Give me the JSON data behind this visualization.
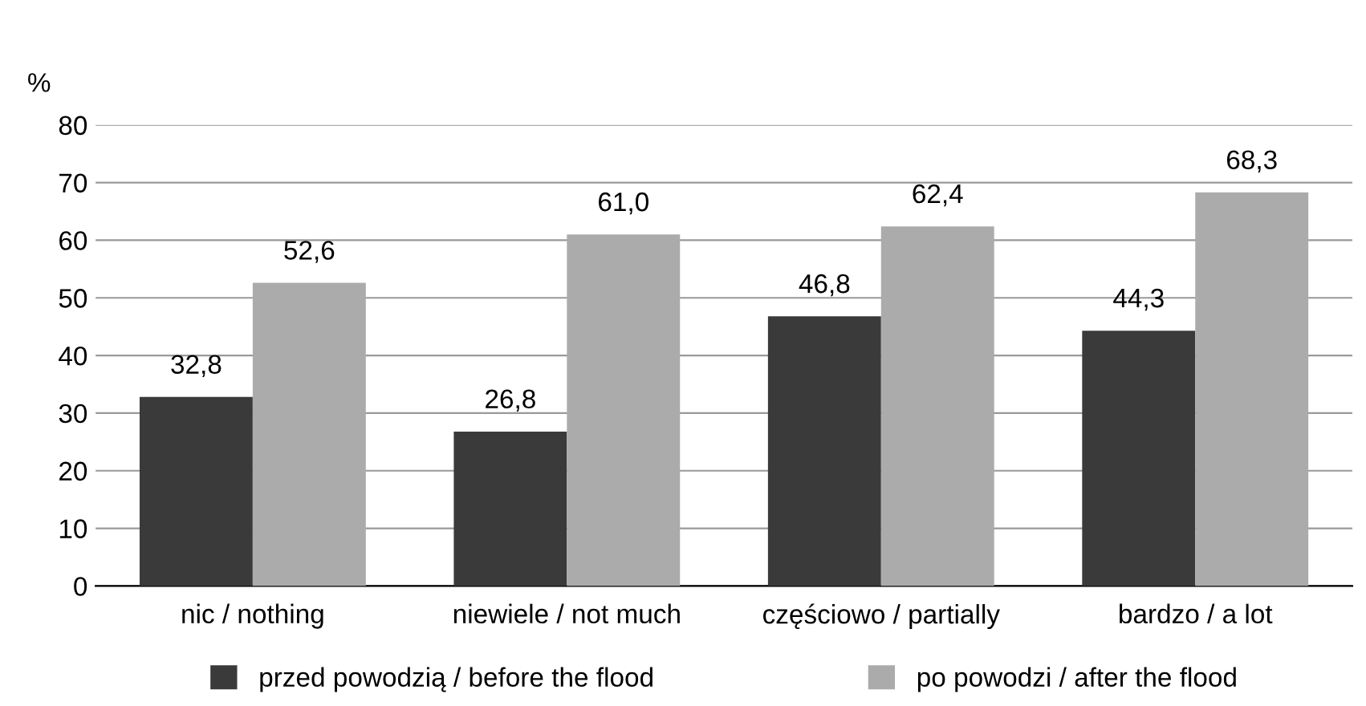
{
  "chart_data": {
    "type": "bar",
    "ylabel": "%",
    "categories": [
      "nic / nothing",
      "niewiele / not much",
      "częściowo / partially",
      "bardzo / a lot"
    ],
    "series": [
      {
        "name": "przed powodzią / before the flood",
        "color": "#3a3a3a",
        "values": [
          32.8,
          26.8,
          46.8,
          44.3
        ],
        "value_labels": [
          "32,8",
          "26,8",
          "46,8",
          "44,3"
        ]
      },
      {
        "name": "po powodzi / after the flood",
        "color": "#ababab",
        "values": [
          52.6,
          61.0,
          62.4,
          68.3
        ],
        "value_labels": [
          "52,6",
          "61,0",
          "62,4",
          "68,3"
        ]
      }
    ],
    "ylim": [
      0,
      80
    ],
    "yticks": [
      0,
      10,
      20,
      30,
      40,
      50,
      60,
      70,
      80
    ],
    "grid": "y",
    "legend": "bottom"
  }
}
